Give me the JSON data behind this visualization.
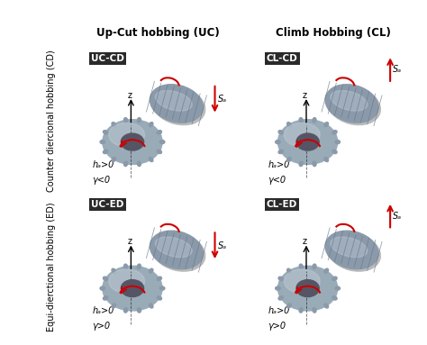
{
  "title_top_left": "Up-Cut hobbing (UC)",
  "title_top_right": "Climb Hobbing (CL)",
  "label_left_top": "Counter diercional hobbing (CD)",
  "label_left_bottom": "Equi-dierctional hobbing (ED)",
  "cell_labels": [
    "UC-CD",
    "CL-CD",
    "UC-ED",
    "CL-ED"
  ],
  "math_labels_top": [
    "hₐ>0\nγ<0",
    "hₐ>0\nγ<0",
    "hₐ>0\nγ>0",
    "hₐ>0\nγ>0"
  ],
  "sa_label": "Sₐ",
  "z_label": "z",
  "bg_color": "#f0f0f0",
  "header_bg": "#d0d0d0",
  "cell_bg": "#ffffff",
  "label_bg": "#333333",
  "label_fg": "#ffffff",
  "border_color": "#555555",
  "arrow_down_color": "#cc0000",
  "arrow_up_color": "#cc0000",
  "sa_down": [
    true,
    false,
    true,
    false
  ],
  "gear_color": "#a0a8b0",
  "outer_border": "#3a3a3a",
  "fig_bg": "#ffffff"
}
